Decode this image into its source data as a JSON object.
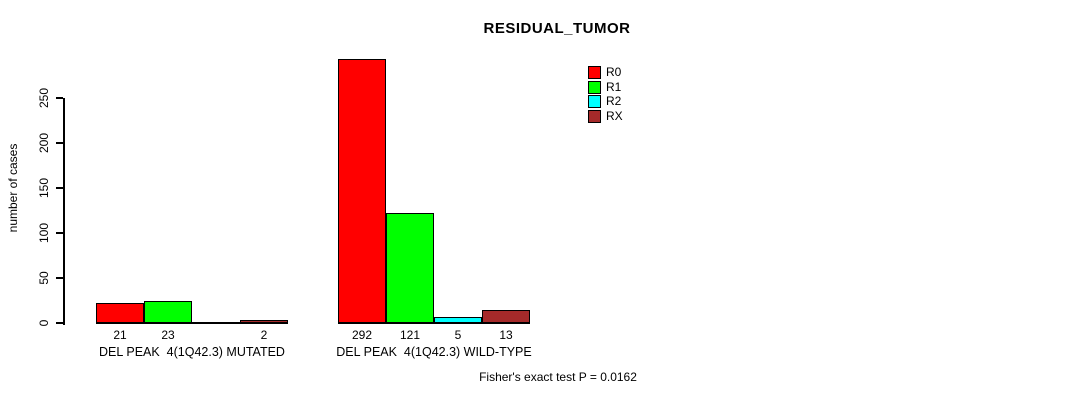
{
  "chart_data": {
    "type": "bar",
    "title": "RESIDUAL_TUMOR",
    "ylabel": "number of cases",
    "xlabel": "",
    "categories": [
      "DEL PEAK  4(1Q42.3) MUTATED",
      "DEL PEAK  4(1Q42.3) WILD-TYPE"
    ],
    "series": [
      {
        "name": "R0",
        "color": "#ff0000",
        "values": [
          21,
          292
        ]
      },
      {
        "name": "R1",
        "color": "#00ff00",
        "values": [
          23,
          121
        ]
      },
      {
        "name": "R2",
        "color": "#00ffff",
        "values": [
          0,
          5
        ]
      },
      {
        "name": "RX",
        "color": "#a52a2a",
        "values": [
          2,
          13
        ]
      }
    ],
    "bar_labels": [
      [
        "21",
        "23",
        "",
        "2"
      ],
      [
        "292",
        "121",
        "5",
        "13"
      ]
    ],
    "yticks": [
      0,
      50,
      100,
      150,
      200,
      250
    ],
    "ylim": [
      0,
      290
    ],
    "grid": false,
    "legend_position": "top-right",
    "annotation": "Fisher's exact test P = 0.0162"
  }
}
